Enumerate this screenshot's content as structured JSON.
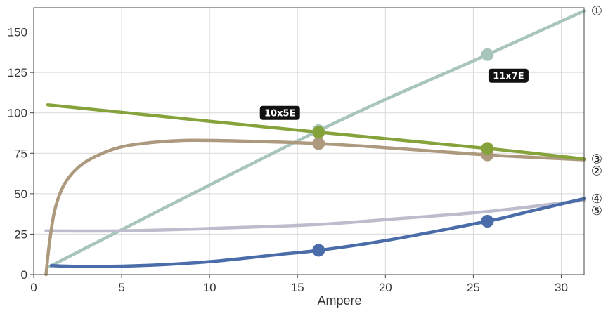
{
  "chart_data": {
    "type": "line",
    "xlabel": "Ampere",
    "ylabel": "",
    "xlim": [
      0,
      31.3
    ],
    "ylim": [
      0,
      165
    ],
    "x_ticks": [
      0,
      5,
      10,
      15,
      20,
      25,
      30
    ],
    "y_ticks": [
      0,
      25,
      50,
      75,
      100,
      125,
      150
    ],
    "grid": true,
    "series": [
      {
        "name": "①",
        "color": "#a8c5bc",
        "points": [
          [
            0.9,
            5
          ],
          [
            16.2,
            89
          ],
          [
            25.8,
            136
          ],
          [
            31.3,
            163
          ]
        ],
        "markers": [
          [
            16.2,
            89
          ],
          [
            25.8,
            136
          ]
        ]
      },
      {
        "name": "②",
        "color": "#ad9a7e",
        "points": [
          [
            0.7,
            0
          ],
          [
            0.9,
            20
          ],
          [
            1.2,
            40
          ],
          [
            1.7,
            55
          ],
          [
            2.5,
            66
          ],
          [
            3.5,
            73
          ],
          [
            5,
            79
          ],
          [
            7,
            82
          ],
          [
            9,
            83
          ],
          [
            12,
            82.5
          ],
          [
            16.2,
            81
          ],
          [
            20,
            78.5
          ],
          [
            25.8,
            74
          ],
          [
            31.3,
            71
          ]
        ],
        "markers": [
          [
            16.2,
            81
          ],
          [
            25.8,
            74
          ]
        ]
      },
      {
        "name": "③",
        "color": "#85a23b",
        "points": [
          [
            0.8,
            105
          ],
          [
            16.2,
            88
          ],
          [
            25.8,
            78
          ],
          [
            31.3,
            71.5
          ]
        ],
        "markers": [
          [
            16.2,
            88
          ],
          [
            25.8,
            78
          ]
        ]
      },
      {
        "name": "④",
        "color": "#4a6ca8",
        "points": [
          [
            1,
            5.5
          ],
          [
            3,
            5
          ],
          [
            6,
            5.5
          ],
          [
            10,
            8
          ],
          [
            14,
            12.5
          ],
          [
            16.2,
            15
          ],
          [
            20,
            21
          ],
          [
            25.8,
            33
          ],
          [
            28,
            38.5
          ],
          [
            31.3,
            47
          ]
        ],
        "markers": [
          [
            16.2,
            15
          ],
          [
            25.8,
            33
          ]
        ]
      },
      {
        "name": "⑤",
        "color": "#bcbccc",
        "points": [
          [
            0.7,
            27
          ],
          [
            5,
            27
          ],
          [
            10,
            28.5
          ],
          [
            16.2,
            31
          ],
          [
            20,
            34
          ],
          [
            25.8,
            39
          ],
          [
            31.3,
            46
          ]
        ],
        "markers": []
      }
    ],
    "annotations": [
      {
        "text": "10x5E",
        "x": 14.0,
        "y": 100
      },
      {
        "text": "11x7E",
        "x": 27.0,
        "y": 123
      }
    ]
  }
}
